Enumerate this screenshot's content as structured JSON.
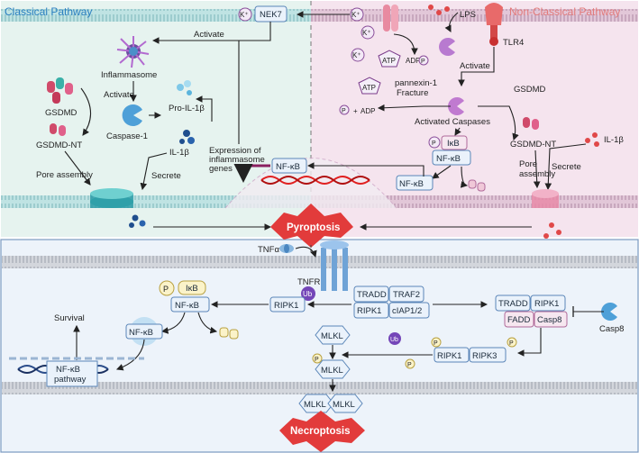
{
  "panels": {
    "classical": "Classical Pathway",
    "nonclassical": "Non-Classical Pathway"
  },
  "classical": {
    "k_ion": "K⁺",
    "nek7": "NEK7",
    "activate1": "Activate",
    "inflammasome": "Inflammasome",
    "activate2": "Activate",
    "gsdmd": "GSDMD",
    "gsdmd_nt": "GSDMD-NT",
    "caspase1": "Caspase-1",
    "pro_il1b": "Pro-IL-1β",
    "il1b": "IL-1β",
    "pore_assembly": "Pore assembly",
    "secrete": "Secrete",
    "expression": [
      "Expression of",
      "inflammasome",
      "genes"
    ]
  },
  "nonclassical": {
    "k1": "K⁺",
    "k2": "K⁺",
    "k3": "K⁺",
    "lps": "LPS",
    "tlr4": "TLR4",
    "atp1": "ATP",
    "adp1": "ADP",
    "p": "P",
    "activate": "Activate",
    "atp2": "ATP",
    "adp2": "ADP",
    "pannexin": [
      "pannexin-1",
      "Fracture"
    ],
    "activated_caspases": "Activated Caspases",
    "gsdmd": "GSDMD",
    "gsdmd_nt": "GSDMD-NT",
    "il1b": "IL-1β",
    "pore_assembly": [
      "Pore",
      "assembly"
    ],
    "secrete": "Secrete",
    "ikb": "IκB",
    "nfkb1": "NF-κB",
    "nfkb2": "NF-κB",
    "nfkb_nuc": "NF-κB"
  },
  "pyroptosis": "Pyroptosis",
  "necroptosis": "Necroptosis",
  "lower": {
    "tnfa": "TNFα",
    "tnfr": "TNFR",
    "ub": "Ub",
    "ripk1_left": "RIPK1",
    "p": "P",
    "ikb": "IκB",
    "nfkb": "NF-κB",
    "nfkb2": "NF-κB",
    "survival": "Survival",
    "nfkb_pathway": [
      "NF-κB",
      "pathway"
    ],
    "tradd": "TRADD",
    "traf2": "TRAF2",
    "ripk1_c": "RIPK1",
    "ciap": "cIAP1/2",
    "ub2": "Ub",
    "tradd2": "TRADD",
    "ripk1_r": "RIPK1",
    "fadd": "FADD",
    "casp8": "Casp8",
    "casp8_inhib": "Casp8",
    "mlkl1": "MLKL",
    "mlkl2": "MLKL",
    "ripk1_b": "RIPK1",
    "ripk3": "RIPK3",
    "mlkl_a": "MLKL",
    "mlkl_b": "MLKL"
  },
  "colors": {
    "classical_bg": "#e6f3ef",
    "nonclassical_bg": "#f5e4ee",
    "lower_bg": "#edf3fa",
    "pyroptosis": "#e23b3b"
  }
}
